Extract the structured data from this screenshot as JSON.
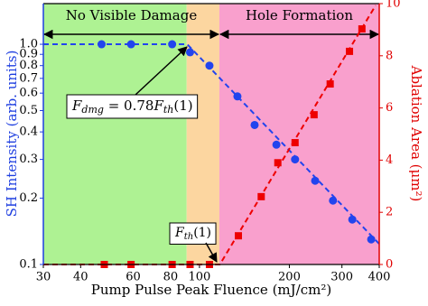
{
  "chart_data": {
    "type": "scatter",
    "xlabel": "Pump Pulse Peak Fluence (mJ/cm²)",
    "ylabel": "SH Intensity (arb. units)",
    "y2label": "Ablation Area (μm²)",
    "xscale": "log",
    "yscale": "log",
    "xlim": [
      30,
      400
    ],
    "xticks": [
      30,
      40,
      60,
      80,
      100,
      200,
      300,
      400
    ],
    "ylim": [
      0.1,
      1.53
    ],
    "yticks": [
      {
        "value": 1,
        "label": "1.0"
      },
      0.9,
      0.8,
      0.7,
      0.6,
      0.5,
      0.4,
      0.3,
      0.2,
      0.1
    ],
    "y2lim": [
      0,
      10
    ],
    "y2ticks": [
      0,
      2,
      4,
      6,
      8,
      10
    ],
    "ycolor": "#1f3fe0",
    "y2color": "#e00000",
    "shading": [
      {
        "x": [
          30,
          90.6
        ],
        "color": "#aef293"
      },
      {
        "x": [
          90.6,
          116.6
        ],
        "color": "#fcd6a0"
      },
      {
        "x": [
          116.6,
          400
        ],
        "color": "#f9a0cd"
      }
    ],
    "spans": [
      {
        "label": "No Visible Damage",
        "x": [
          30,
          116.6
        ]
      },
      {
        "label": "Hole Formation",
        "x": [
          116.6,
          400
        ]
      }
    ],
    "series": [
      {
        "color": "#2244ee",
        "marker": "circle",
        "x": [
          47,
          59,
          81,
          93,
          108,
          134,
          153,
          181,
          209,
          244,
          280,
          325,
          376
        ],
        "values": [
          1.0,
          1.0,
          1.0,
          0.92,
          0.8,
          0.58,
          0.43,
          0.35,
          0.3,
          0.24,
          0.195,
          0.16,
          0.13
        ]
      },
      {
        "color": "#ee0000",
        "marker": "square",
        "axis": "y2",
        "x": [
          48,
          59,
          81,
          93,
          108,
          135,
          161,
          183,
          209,
          242,
          274,
          318,
          350
        ],
        "values": [
          0,
          0,
          0,
          0,
          0,
          1.1,
          2.6,
          3.9,
          4.67,
          5.74,
          6.92,
          8.17,
          9.03
        ]
      }
    ],
    "fits": [
      {
        "color": "#2244ee",
        "x": [
          30,
          91,
          400
        ],
        "values": [
          1,
          1,
          0.124
        ]
      },
      {
        "color": "#ee0000",
        "axis": "y2",
        "x": [
          30,
          117,
          389
        ],
        "values": [
          0,
          0,
          9.93
        ]
      }
    ],
    "annotations": [
      {
        "segments": [
          {
            "text": "F"
          },
          {
            "sub": "dmg"
          },
          {
            "text": " = 0.78"
          },
          {
            "text": "F"
          },
          {
            "sub": "th"
          },
          {
            "text": "(1)"
          }
        ]
      },
      {
        "segments": [
          {
            "text": "F"
          },
          {
            "sub": "th"
          },
          {
            "text": "(1)"
          }
        ]
      }
    ]
  }
}
